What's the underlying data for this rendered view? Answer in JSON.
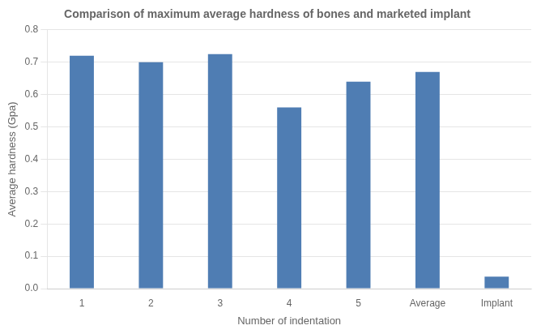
{
  "chart_data": {
    "type": "bar",
    "title": "Comparison of maximum average hardness of bones and marketed implant",
    "xlabel": "Number of indentation",
    "ylabel": "Average hardness (Gpa)",
    "categories": [
      "1",
      "2",
      "3",
      "4",
      "5",
      "Average",
      "Implant"
    ],
    "values": [
      0.72,
      0.7,
      0.725,
      0.56,
      0.64,
      0.67,
      0.037
    ],
    "color": "#4f7db3",
    "ylim": [
      0,
      0.8
    ],
    "yticks": [
      {
        "value": 0,
        "label": "0.0"
      },
      0.1,
      0.2,
      0.3,
      0.4,
      0.5,
      0.6,
      0.7,
      0.8
    ],
    "grid": true
  }
}
